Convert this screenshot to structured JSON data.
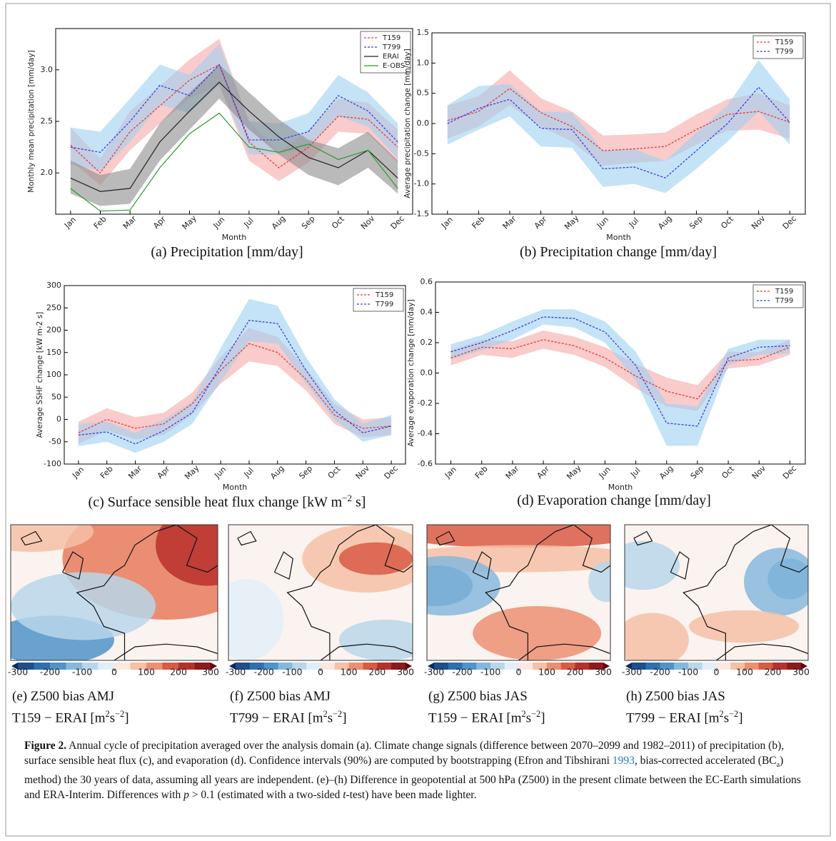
{
  "chart_data": [
    {
      "type": "line",
      "ylabel": "Monthly mean precipitation [mm/day]",
      "xlabel": "Month",
      "caption": [
        "(a) Precipitation [mm/day]"
      ],
      "categories": [
        "Jan",
        "Feb",
        "Mar",
        "Apr",
        "May",
        "Jun",
        "Jul",
        "Aug",
        "Sep",
        "Oct",
        "Nov",
        "Dec"
      ],
      "ylim": [
        1.6,
        3.4
      ],
      "yticks": [
        {
          "value": 2.0,
          "label": "2.0"
        },
        2.5,
        {
          "value": 3.0,
          "label": "3.0"
        }
      ],
      "legend": "upper right",
      "series": [
        {
          "name": "T159",
          "color": "#e8393a",
          "band_color": "#f5a8a8",
          "dash": true,
          "values": [
            2.27,
            2.0,
            2.4,
            2.65,
            2.9,
            3.05,
            2.3,
            2.05,
            2.25,
            2.55,
            2.52,
            2.25
          ],
          "lower": [
            2.12,
            1.88,
            2.22,
            2.48,
            2.72,
            2.85,
            2.12,
            1.92,
            2.1,
            2.4,
            2.38,
            2.1
          ],
          "upper": [
            2.44,
            2.14,
            2.6,
            2.84,
            3.1,
            3.3,
            2.5,
            2.2,
            2.42,
            2.72,
            2.68,
            2.42
          ]
        },
        {
          "name": "T799",
          "color": "#3a3ae8",
          "band_color": "#9fd0f2",
          "dash": true,
          "values": [
            2.25,
            2.2,
            2.5,
            2.85,
            2.75,
            3.05,
            2.32,
            2.32,
            2.4,
            2.75,
            2.6,
            2.3
          ],
          "lower": [
            2.08,
            2.02,
            2.3,
            2.66,
            2.58,
            2.86,
            2.18,
            2.18,
            2.25,
            2.55,
            2.45,
            2.14
          ],
          "upper": [
            2.44,
            2.4,
            2.72,
            3.05,
            2.95,
            3.25,
            2.5,
            2.48,
            2.58,
            2.95,
            2.78,
            2.48
          ]
        },
        {
          "name": "ERAI",
          "color": "#222222",
          "band_color": "#8c8c8c",
          "dash": false,
          "values": [
            1.95,
            1.82,
            1.85,
            2.3,
            2.6,
            2.88,
            2.6,
            2.35,
            2.15,
            2.05,
            2.22,
            1.95
          ],
          "lower": [
            1.8,
            1.68,
            1.7,
            2.12,
            2.42,
            2.72,
            2.42,
            2.18,
            1.98,
            1.88,
            2.05,
            1.8
          ],
          "upper": [
            2.12,
            1.98,
            2.04,
            2.48,
            2.78,
            3.05,
            2.78,
            2.52,
            2.32,
            2.24,
            2.4,
            2.12
          ]
        },
        {
          "name": "E-OBS",
          "color": "#2e9a2e",
          "dash": false,
          "values": [
            1.85,
            1.63,
            1.64,
            2.05,
            2.38,
            2.58,
            2.25,
            2.2,
            2.28,
            2.13,
            2.22,
            1.85
          ]
        }
      ]
    },
    {
      "type": "line",
      "ylabel": "Average precipitation change [mm/day]",
      "xlabel": "Month",
      "caption": [
        "(b) Precipitation change [mm/day]"
      ],
      "categories": [
        "Jan",
        "Feb",
        "Mar",
        "Apr",
        "May",
        "Jun",
        "Jul",
        "Aug",
        "Sep",
        "Oct",
        "Nov",
        "Dec"
      ],
      "ylim": [
        -1.5,
        1.5
      ],
      "yticks": [
        -1.5,
        {
          "value": -1.0,
          "label": "-1.0"
        },
        -0.5,
        {
          "value": 0.0,
          "label": "0.0"
        },
        0.5,
        {
          "value": 1.0,
          "label": "1.0"
        },
        1.5
      ],
      "legend": "upper right",
      "series": [
        {
          "name": "T159",
          "color": "#e8393a",
          "band_color": "#f5a8a8",
          "dash": true,
          "values": [
            0.05,
            0.2,
            0.58,
            0.18,
            -0.05,
            -0.45,
            -0.42,
            -0.38,
            -0.1,
            0.15,
            0.2,
            0.02
          ],
          "lower": [
            -0.25,
            -0.05,
            0.3,
            -0.05,
            -0.3,
            -0.7,
            -0.65,
            -0.62,
            -0.35,
            -0.12,
            -0.1,
            -0.25
          ],
          "upper": [
            0.3,
            0.45,
            0.88,
            0.42,
            0.2,
            -0.2,
            -0.18,
            -0.15,
            0.15,
            0.4,
            0.5,
            0.3
          ]
        },
        {
          "name": "T799",
          "color": "#3a3ae8",
          "band_color": "#9fd0f2",
          "dash": true,
          "values": [
            0.0,
            0.25,
            0.4,
            -0.08,
            -0.1,
            -0.75,
            -0.72,
            -0.9,
            -0.45,
            0.0,
            0.6,
            0.02
          ],
          "lower": [
            -0.35,
            -0.1,
            0.12,
            -0.38,
            -0.4,
            -1.05,
            -1.0,
            -1.15,
            -0.75,
            -0.3,
            0.2,
            -0.35
          ],
          "upper": [
            0.3,
            0.62,
            0.65,
            0.2,
            0.18,
            -0.45,
            -0.42,
            -0.62,
            -0.15,
            0.3,
            1.05,
            0.4
          ]
        }
      ]
    },
    {
      "type": "line",
      "ylabel": "Average SSHF change [kW m-2 s]",
      "xlabel": "Month",
      "caption": [
        "(c) Surface sensible heat flux change [kW m",
        "−2",
        " s]"
      ],
      "categories": [
        "Jan",
        "Feb",
        "Mar",
        "Apr",
        "May",
        "Jun",
        "Jul",
        "Aug",
        "Sep",
        "Oct",
        "Nov",
        "Dec"
      ],
      "ylim": [
        -100,
        300
      ],
      "yticks": [
        -100,
        -50,
        0,
        50,
        100,
        150,
        200,
        250,
        300
      ],
      "legend": "upper right",
      "series": [
        {
          "name": "T159",
          "color": "#e8393a",
          "band_color": "#f5a8a8",
          "dash": true,
          "values": [
            -30,
            0,
            -20,
            -10,
            35,
            110,
            170,
            150,
            90,
            10,
            -20,
            -15
          ],
          "lower": [
            -55,
            -25,
            -45,
            -35,
            10,
            80,
            130,
            120,
            65,
            -10,
            -40,
            -35
          ],
          "upper": [
            -5,
            25,
            5,
            15,
            60,
            140,
            205,
            185,
            115,
            35,
            0,
            5
          ]
        },
        {
          "name": "T799",
          "color": "#3a3ae8",
          "band_color": "#9fd0f2",
          "dash": true,
          "values": [
            -35,
            -28,
            -55,
            -25,
            15,
            120,
            222,
            215,
            110,
            20,
            -30,
            -15
          ],
          "lower": [
            -60,
            -50,
            -75,
            -50,
            -10,
            85,
            175,
            170,
            80,
            0,
            -50,
            -35
          ],
          "upper": [
            -10,
            -5,
            -30,
            0,
            40,
            160,
            270,
            255,
            140,
            45,
            -10,
            10
          ]
        }
      ]
    },
    {
      "type": "line",
      "ylabel": "Average evaporation change [mm/day]",
      "xlabel": "Month",
      "caption": [
        "(d) Evaporation change [mm/day]"
      ],
      "categories": [
        "Jan",
        "Feb",
        "Mar",
        "Apr",
        "May",
        "Jun",
        "Jul",
        "Aug",
        "Sep",
        "Oct",
        "Nov",
        "Dec"
      ],
      "ylim": [
        -0.6,
        0.6
      ],
      "yticks": [
        -0.6,
        -0.4,
        -0.2,
        {
          "value": 0.0,
          "label": "0.0"
        },
        0.2,
        0.4,
        0.6
      ],
      "legend": "upper right",
      "series": [
        {
          "name": "T159",
          "color": "#e8393a",
          "band_color": "#f5a8a8",
          "dash": true,
          "values": [
            0.1,
            0.17,
            0.16,
            0.22,
            0.18,
            0.1,
            -0.02,
            -0.12,
            -0.17,
            0.08,
            0.09,
            0.17
          ],
          "lower": [
            0.05,
            0.12,
            0.1,
            0.16,
            0.12,
            0.04,
            -0.1,
            -0.22,
            -0.25,
            0.03,
            0.05,
            0.12
          ],
          "upper": [
            0.15,
            0.22,
            0.21,
            0.28,
            0.24,
            0.17,
            0.06,
            -0.03,
            -0.08,
            0.14,
            0.14,
            0.22
          ]
        },
        {
          "name": "T799",
          "color": "#3a3ae8",
          "band_color": "#9fd0f2",
          "dash": true,
          "values": [
            0.14,
            0.2,
            0.28,
            0.37,
            0.36,
            0.27,
            0.05,
            -0.33,
            -0.35,
            0.1,
            0.17,
            0.18
          ],
          "lower": [
            0.09,
            0.15,
            0.22,
            0.32,
            0.3,
            0.2,
            -0.05,
            -0.48,
            -0.48,
            0.05,
            0.12,
            0.13
          ],
          "upper": [
            0.19,
            0.25,
            0.34,
            0.42,
            0.42,
            0.34,
            0.14,
            -0.2,
            -0.22,
            0.16,
            0.22,
            0.22
          ]
        }
      ]
    }
  ],
  "maps": {
    "clim": [
      -300,
      300
    ],
    "ticks": [
      -300,
      -200,
      -100,
      0,
      100,
      200,
      300
    ],
    "panels": [
      {
        "caption": [
          [
            "(e) Z500 bias AMJ"
          ],
          [
            "T159 − ERAI [m",
            "2",
            "s",
            "−2",
            "]"
          ]
        ]
      },
      {
        "caption": [
          [
            "(f) Z500 bias AMJ"
          ],
          [
            "T799 − ERAI [m",
            "2",
            "s",
            "−2",
            "]"
          ]
        ]
      },
      {
        "caption": [
          [
            "(g) Z500 bias JAS"
          ],
          [
            "T159 − ERAI [m",
            "2",
            "s",
            "−2",
            "]"
          ]
        ]
      },
      {
        "caption": [
          [
            "(h) Z500 bias JAS"
          ],
          [
            "T799 − ERAI [m",
            "2",
            "s",
            "−2",
            "]"
          ]
        ]
      }
    ]
  },
  "caption": {
    "label": "Figure 2.",
    "parts": [
      " Annual cycle of precipitation averaged over the analysis domain (a). Climate change signals (difference between 2070–2099 and 1982–2011) of precipitation (b), surface sensible heat flux (c), and evaporation (d). Confidence intervals (90%) are computed by bootstrapping (Efron and Tibshirani ",
      "1993",
      ", bias-corrected accelerated (BC",
      "a",
      ") method) the 30 years of data, assuming all years are independent. (e)–(h) Difference in geopotential at 500 hPa (Z500) in the present climate between the EC-Earth simulations and ERA-Interim. Differences with ",
      "p",
      " > 0.1 (estimated with a two-sided ",
      "t",
      "-test) have been made lighter."
    ]
  }
}
